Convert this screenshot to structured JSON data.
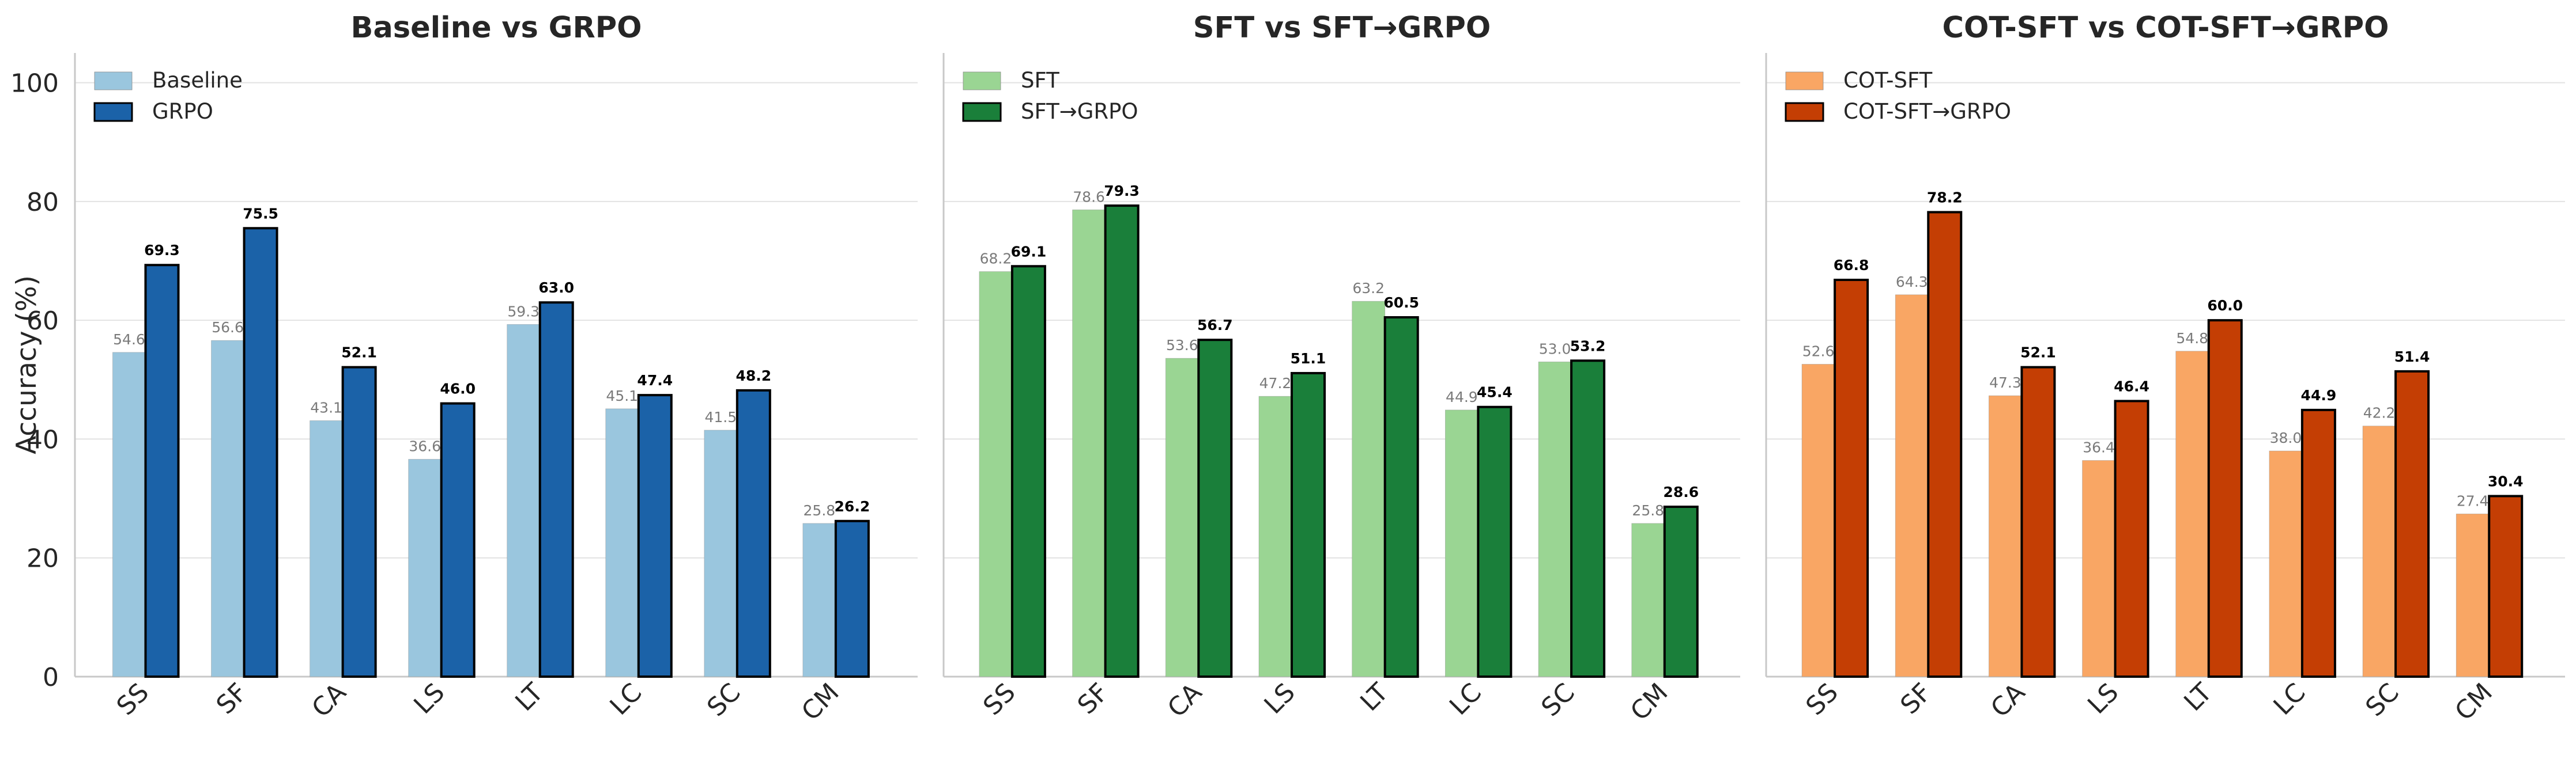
{
  "chart_data": [
    {
      "type": "bar",
      "title": "Baseline vs GRPO",
      "ylabel": "Accuracy (%)",
      "ylim": [
        0,
        105
      ],
      "yticks": [
        0,
        20,
        40,
        60,
        80,
        100
      ],
      "grid": true,
      "legend": "top-left",
      "categories": [
        "SS",
        "SF",
        "CA",
        "LS",
        "LT",
        "LC",
        "SC",
        "CM"
      ],
      "series": [
        {
          "name": "Baseline",
          "color": "#9ac6de",
          "values": [
            54.6,
            56.6,
            43.1,
            36.6,
            59.3,
            45.1,
            41.5,
            25.8
          ]
        },
        {
          "name": "GRPO",
          "color": "#1b62a8",
          "values": [
            69.3,
            75.5,
            52.1,
            46.0,
            63.0,
            47.4,
            48.2,
            26.2
          ]
        }
      ]
    },
    {
      "type": "bar",
      "title": "SFT vs SFT→GRPO",
      "ylabel": "",
      "ylim": [
        0,
        105
      ],
      "yticks": [
        0,
        20,
        40,
        60,
        80,
        100
      ],
      "grid": true,
      "legend": "top-left",
      "categories": [
        "SS",
        "SF",
        "CA",
        "LS",
        "LT",
        "LC",
        "SC",
        "CM"
      ],
      "series": [
        {
          "name": "SFT",
          "color": "#9ad593",
          "values": [
            68.2,
            78.6,
            53.6,
            47.2,
            63.2,
            44.9,
            53.0,
            25.8
          ]
        },
        {
          "name": "SFT→GRPO",
          "color": "#1a7f3a",
          "values": [
            69.1,
            79.3,
            56.7,
            51.1,
            60.5,
            45.4,
            53.2,
            28.6
          ]
        }
      ]
    },
    {
      "type": "bar",
      "title": "COT-SFT vs COT-SFT→GRPO",
      "ylabel": "",
      "ylim": [
        0,
        105
      ],
      "yticks": [
        0,
        20,
        40,
        60,
        80,
        100
      ],
      "grid": true,
      "legend": "top-left",
      "categories": [
        "SS",
        "SF",
        "CA",
        "LS",
        "LT",
        "LC",
        "SC",
        "CM"
      ],
      "series": [
        {
          "name": "COT-SFT",
          "color": "#f9a664",
          "values": [
            52.6,
            64.3,
            47.3,
            36.4,
            54.8,
            38.0,
            42.2,
            27.4
          ]
        },
        {
          "name": "COT-SFT→GRPO",
          "color": "#c43e04",
          "values": [
            66.8,
            78.2,
            52.1,
            46.4,
            60.0,
            44.9,
            51.4,
            30.4
          ]
        }
      ]
    }
  ]
}
